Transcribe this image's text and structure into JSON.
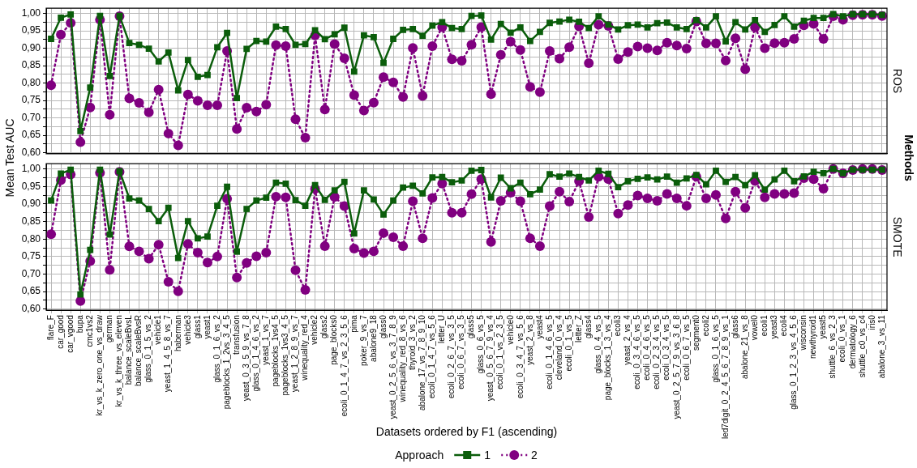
{
  "chart_data": [
    {
      "type": "line",
      "title": "ROS",
      "categories": [
        null,
        null,
        null,
        null,
        null,
        null,
        null,
        null,
        null,
        null,
        null,
        null,
        null,
        null,
        null,
        null,
        null,
        null,
        null,
        null,
        null,
        null,
        null,
        null,
        null,
        null,
        null,
        null,
        null,
        null,
        null,
        null,
        null,
        null,
        null,
        null,
        null,
        null,
        null,
        null,
        null,
        null,
        null,
        null,
        null,
        null,
        null,
        null,
        null,
        null,
        null,
        null,
        null,
        null,
        null,
        null,
        null,
        null,
        null,
        null,
        null,
        null,
        null,
        null,
        null,
        null,
        null,
        null,
        null,
        null,
        null,
        null,
        null,
        null,
        null,
        null,
        null,
        null,
        null,
        null,
        null,
        null,
        null,
        null,
        null,
        null
      ],
      "series": [
        {
          "color": "#0b5d0b",
          "marker": "square",
          "line_style": "solid",
          "values": [
            0.927,
            0.988,
            0.997,
            0.662,
            0.787,
            0.993,
            0.82,
            0.993,
            0.915,
            0.91,
            0.899,
            0.862,
            0.888,
            0.779,
            0.866,
            0.818,
            0.823,
            0.903,
            0.944,
            0.757,
            0.898,
            0.921,
            0.919,
            0.962,
            0.955,
            0.91,
            0.912,
            0.952,
            0.926,
            0.94,
            0.959,
            0.833,
            0.937,
            0.932,
            0.858,
            0.927,
            0.953,
            0.955,
            0.936,
            0.965,
            0.975,
            0.958,
            0.955,
            0.993,
            0.994,
            0.925,
            0.97,
            0.945,
            0.96,
            0.921,
            0.947,
            0.973,
            0.977,
            0.982,
            0.976,
            0.958,
            0.992,
            0.968,
            0.954,
            0.966,
            0.968,
            0.96,
            0.972,
            0.974,
            0.96,
            0.955,
            0.981,
            0.96,
            0.992,
            0.92,
            0.975,
            0.954,
            0.981,
            0.947,
            0.967,
            0.992,
            0.962,
            0.979,
            0.987,
            0.987,
            0.998,
            0.992,
            0.998,
            0.998,
            0.998,
            0.996
          ]
        },
        {
          "color": "#800080",
          "marker": "circle",
          "line_style": "dotted",
          "values": [
            0.794,
            0.939,
            0.973,
            0.63,
            0.73,
            0.982,
            0.709,
            0.992,
            0.756,
            0.743,
            0.716,
            0.781,
            0.655,
            0.621,
            0.767,
            0.749,
            0.736,
            0.736,
            0.892,
            0.668,
            0.729,
            0.718,
            0.738,
            0.909,
            0.906,
            0.696,
            0.643,
            0.937,
            0.724,
            0.912,
            0.871,
            0.765,
            0.721,
            0.744,
            0.817,
            0.802,
            0.76,
            0.901,
            0.763,
            0.906,
            0.961,
            0.868,
            0.864,
            0.91,
            0.961,
            0.768,
            0.881,
            0.919,
            0.895,
            0.789,
            0.774,
            0.892,
            0.87,
            0.903,
            0.963,
            0.857,
            0.968,
            0.964,
            0.869,
            0.889,
            0.905,
            0.9,
            0.894,
            0.916,
            0.908,
            0.899,
            0.977,
            0.914,
            0.914,
            0.865,
            0.929,
            0.84,
            0.96,
            0.9,
            0.915,
            0.916,
            0.927,
            0.966,
            0.97,
            0.927,
            0.992,
            0.982,
            0.995,
            0.996,
            0.996,
            0.993
          ]
        }
      ],
      "ylim": [
        0.597,
        1.015
      ],
      "yticks": [
        {
          "value": 0.6,
          "label": "0,60"
        },
        {
          "value": 0.625,
          "label": null
        },
        {
          "value": 0.65,
          "label": "0,65"
        },
        {
          "value": 0.675,
          "label": null
        },
        {
          "value": 0.7,
          "label": "0,70"
        },
        {
          "value": 0.725,
          "label": null
        },
        {
          "value": 0.75,
          "label": "0,75"
        },
        {
          "value": 0.775,
          "label": null
        },
        {
          "value": 0.8,
          "label": "0,80"
        },
        {
          "value": 0.825,
          "label": null
        },
        {
          "value": 0.85,
          "label": "0,85"
        },
        {
          "value": 0.875,
          "label": null
        },
        {
          "value": 0.9,
          "label": "0,90"
        },
        {
          "value": 0.925,
          "label": null
        },
        {
          "value": 0.95,
          "label": "0,95"
        },
        {
          "value": 0.975,
          "label": null
        },
        {
          "value": 1,
          "label": "1,00"
        }
      ],
      "grid": true,
      "tick_labels": "y",
      "legend": false
    },
    {
      "type": "line",
      "title": "SMOTE",
      "ylabel": "Mean Test AUC",
      "xlabel": "Datasets ordered by F1 (ascending)",
      "legend_title": "Approach",
      "annotations": [
        "Methods"
      ],
      "categories": [
        "flare_F",
        "car_good",
        "car_vgood",
        "bupa",
        "cmc1vs2",
        "kr_vs_k_zero_one_vs_draw",
        "german",
        "kr_vs_k_three_vs_eleven",
        "balance_scaleBvsL",
        "balance_scaleBvsR",
        "glass_0_1_5_vs_2",
        "vehicle1",
        "yeast_1_4_5_8_vs_7",
        "haberman",
        "vehicle3",
        "glass1",
        "yeast1",
        "glass_0_1_6_vs_2",
        "pageblocks_1_2vs_3_4_5",
        "transfusion",
        "yeast_0_3_5_9_vs_7_8",
        "glass_0_1_4_6_vs_2",
        "yeast_1_vs_7",
        "pageblocks_1vs4_5",
        "pageblocks_1vs3_4_5",
        "yeast_1_2_8_9_vs_7",
        "winequality_red_4",
        "vehicle2",
        "glass2",
        "page_blocks0",
        "ecoli_0_1_4_7_vs_2_3_5_6",
        "pima",
        "poker_9_vs_7",
        "abalone9_18",
        "glass0",
        "yeast_0_2_5_6_vs_3_7_8_9",
        "winequality_red_8_vs_6",
        "thyroid_3_vs_2",
        "abalone_17_vs_7_8_9_10",
        "ecoli_0_1_4_7_vs_5_6",
        "letter_U",
        "ecoli_0_2_6_7_vs_3_5",
        "ecoli_0_6_7_vs_3_5",
        "glass5",
        "glass_0_6_vs_5",
        "yeast_0_5_6_7_9_vs_4",
        "ecoli_0_1_vs_2_3_5",
        "vehicle0",
        "ecoli_0_3_4_7_vs_5_6",
        "yeast_2_vs_8",
        "yeast4",
        "ecoli_0_1_4_6_vs_5",
        "cleveland_0_vs_4",
        "ecoli_0_1_vs_5",
        "letter_Z",
        "glass4",
        "glass_0_4_vs_5",
        "page_blocks_1_3_vs_4",
        "ecoli3",
        "yeast_2_vs_4",
        "ecoli_0_3_4_6_vs_5",
        "ecoli_0_4_6_vs_5",
        "ecoli_0_2_3_4_vs_5",
        "ecoli_0_3_4_vs_5",
        "yeast_0_2_5_7_9_vs_3_6_8",
        "ecoli_0_6_7_vs_5",
        "segment0",
        "ecoli2",
        "glass_0_1_6_vs_5",
        "led7digit_0_2_4_5_6_7_8_9_vs_1",
        "glass6",
        "abalone_21_vs_8",
        "vowel0",
        "ecoli1",
        "yeast3",
        "ecoli4",
        "glass_0_1_2_3_vs_4_5_6",
        "wisconsin",
        "newthyroid1",
        "yeast5",
        "shuttle_6_vs_2_3",
        "ecoli_0_vs_1",
        "dermatology_6",
        "shuttle_c0_vs_c4",
        "iris0",
        "abalone_3_vs_11"
      ],
      "series": [
        {
          "name": "1",
          "color": "#0b5d0b",
          "marker": "square",
          "line_style": "solid",
          "values": [
            0.91,
            0.987,
            0.998,
            0.642,
            0.769,
            0.998,
            0.813,
            0.994,
            0.916,
            0.91,
            0.886,
            0.851,
            0.889,
            0.746,
            0.851,
            0.802,
            0.807,
            0.895,
            0.949,
            0.764,
            0.886,
            0.91,
            0.918,
            0.961,
            0.958,
            0.911,
            0.895,
            0.954,
            0.912,
            0.939,
            0.963,
            0.816,
            0.939,
            0.913,
            0.87,
            0.91,
            0.947,
            0.952,
            0.93,
            0.976,
            0.977,
            0.962,
            0.967,
            0.995,
            0.997,
            0.919,
            0.975,
            0.945,
            0.961,
            0.928,
            0.941,
            0.985,
            0.978,
            0.987,
            0.977,
            0.967,
            0.995,
            0.986,
            0.948,
            0.965,
            0.972,
            0.976,
            0.97,
            0.978,
            0.961,
            0.973,
            0.983,
            0.956,
            0.995,
            0.963,
            0.977,
            0.954,
            0.982,
            0.941,
            0.97,
            0.995,
            0.965,
            0.979,
            0.992,
            0.988,
            1.0,
            0.988,
            0.998,
            0.998,
            0.998,
            0.998
          ]
        },
        {
          "name": "2",
          "color": "#800080",
          "marker": "circle",
          "line_style": "dotted",
          "values": [
            0.814,
            0.968,
            0.984,
            0.623,
            0.737,
            0.989,
            0.712,
            0.992,
            0.779,
            0.765,
            0.744,
            0.784,
            0.678,
            0.651,
            0.786,
            0.761,
            0.733,
            0.75,
            0.915,
            0.69,
            0.732,
            0.751,
            0.761,
            0.921,
            0.919,
            0.711,
            0.655,
            0.943,
            0.78,
            0.92,
            0.894,
            0.773,
            0.76,
            0.765,
            0.817,
            0.805,
            0.78,
            0.908,
            0.802,
            0.917,
            0.958,
            0.875,
            0.875,
            0.928,
            0.971,
            0.792,
            0.909,
            0.932,
            0.908,
            0.802,
            0.78,
            0.894,
            0.935,
            0.907,
            0.965,
            0.863,
            0.978,
            0.971,
            0.873,
            0.897,
            0.924,
            0.916,
            0.909,
            0.929,
            0.916,
            0.895,
            0.978,
            0.916,
            0.926,
            0.859,
            0.935,
            0.889,
            0.966,
            0.919,
            0.929,
            0.929,
            0.931,
            0.974,
            0.971,
            0.944,
            1.0,
            0.988,
            0.997,
            1.0,
            1.0,
            0.997
          ]
        }
      ],
      "ylim": [
        0.597,
        1.015
      ],
      "yticks": [
        {
          "value": 0.6,
          "label": "0,60"
        },
        {
          "value": 0.625,
          "label": null
        },
        {
          "value": 0.65,
          "label": "0,65"
        },
        {
          "value": 0.675,
          "label": null
        },
        {
          "value": 0.7,
          "label": "0,70"
        },
        {
          "value": 0.725,
          "label": null
        },
        {
          "value": 0.75,
          "label": "0,75"
        },
        {
          "value": 0.775,
          "label": null
        },
        {
          "value": 0.8,
          "label": "0,80"
        },
        {
          "value": 0.825,
          "label": null
        },
        {
          "value": 0.85,
          "label": "0,85"
        },
        {
          "value": 0.875,
          "label": null
        },
        {
          "value": 0.9,
          "label": "0,90"
        },
        {
          "value": 0.925,
          "label": null
        },
        {
          "value": 0.95,
          "label": "0,95"
        },
        {
          "value": 0.975,
          "label": null
        },
        {
          "value": 1,
          "label": "1,00"
        }
      ],
      "grid": true,
      "legend": "bottom"
    }
  ]
}
